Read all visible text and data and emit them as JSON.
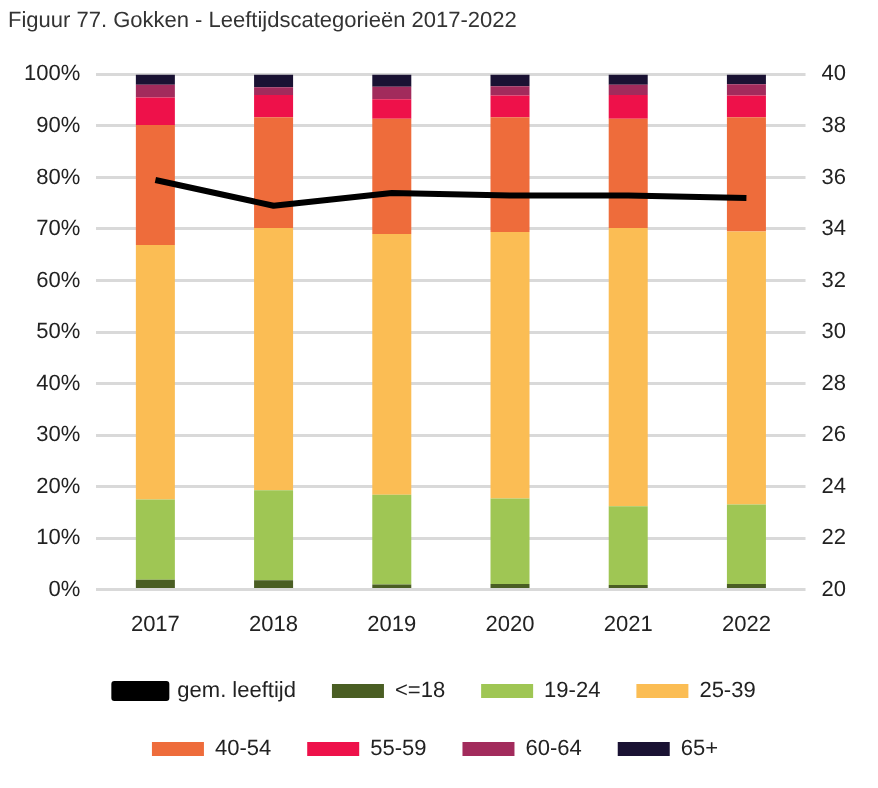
{
  "chart_data": {
    "type": "bar",
    "title": "Figuur 77. Gokken - Leeftijdscategorieën 2017-2022",
    "stacked": true,
    "categories": [
      "2017",
      "2018",
      "2019",
      "2020",
      "2021",
      "2022"
    ],
    "series": [
      {
        "name": "<=18",
        "color": "#4a5e23",
        "values": [
          1.9,
          1.8,
          1.0,
          1.1,
          0.9,
          1.1
        ]
      },
      {
        "name": "19-24",
        "color": "#9fc654",
        "values": [
          15.6,
          17.5,
          17.4,
          16.6,
          15.3,
          15.4
        ]
      },
      {
        "name": "25-39",
        "color": "#fbbd54",
        "values": [
          49.4,
          50.9,
          50.6,
          51.7,
          54.0,
          53.0
        ]
      },
      {
        "name": "40-54",
        "color": "#ee6c3b",
        "values": [
          23.3,
          21.5,
          22.4,
          22.3,
          21.2,
          22.2
        ]
      },
      {
        "name": "55-59",
        "color": "#ee114a",
        "values": [
          5.3,
          4.3,
          3.8,
          4.2,
          4.6,
          4.2
        ]
      },
      {
        "name": "60-64",
        "color": "#a22b5c",
        "values": [
          2.5,
          1.5,
          2.4,
          1.8,
          2.0,
          2.2
        ]
      },
      {
        "name": "65+",
        "color": "#1a1233",
        "values": [
          2.0,
          2.5,
          2.4,
          2.3,
          2.0,
          1.9
        ]
      },
      {
        "name": "gem. leeftijd",
        "type": "line",
        "axis": "y2",
        "color": "#000000",
        "marker": "none",
        "values": [
          35.9,
          34.9,
          35.4,
          35.3,
          35.3,
          35.2
        ]
      }
    ],
    "ylim": [
      0,
      100
    ],
    "yticks": [
      {
        "value": 0,
        "label": "0%"
      },
      {
        "value": 10,
        "label": "10%"
      },
      {
        "value": 20,
        "label": "20%"
      },
      {
        "value": 30,
        "label": "30%"
      },
      {
        "value": 40,
        "label": "40%"
      },
      {
        "value": 50,
        "label": "50%"
      },
      {
        "value": 60,
        "label": "60%"
      },
      {
        "value": 70,
        "label": "70%"
      },
      {
        "value": 80,
        "label": "80%"
      },
      {
        "value": 90,
        "label": "90%"
      },
      {
        "value": 100,
        "label": "100%"
      }
    ],
    "y2lim": [
      20,
      40
    ],
    "y2ticks": [
      20,
      22,
      24,
      26,
      28,
      30,
      32,
      34,
      36,
      38,
      40
    ],
    "grid": "y",
    "legend": "bottom"
  }
}
